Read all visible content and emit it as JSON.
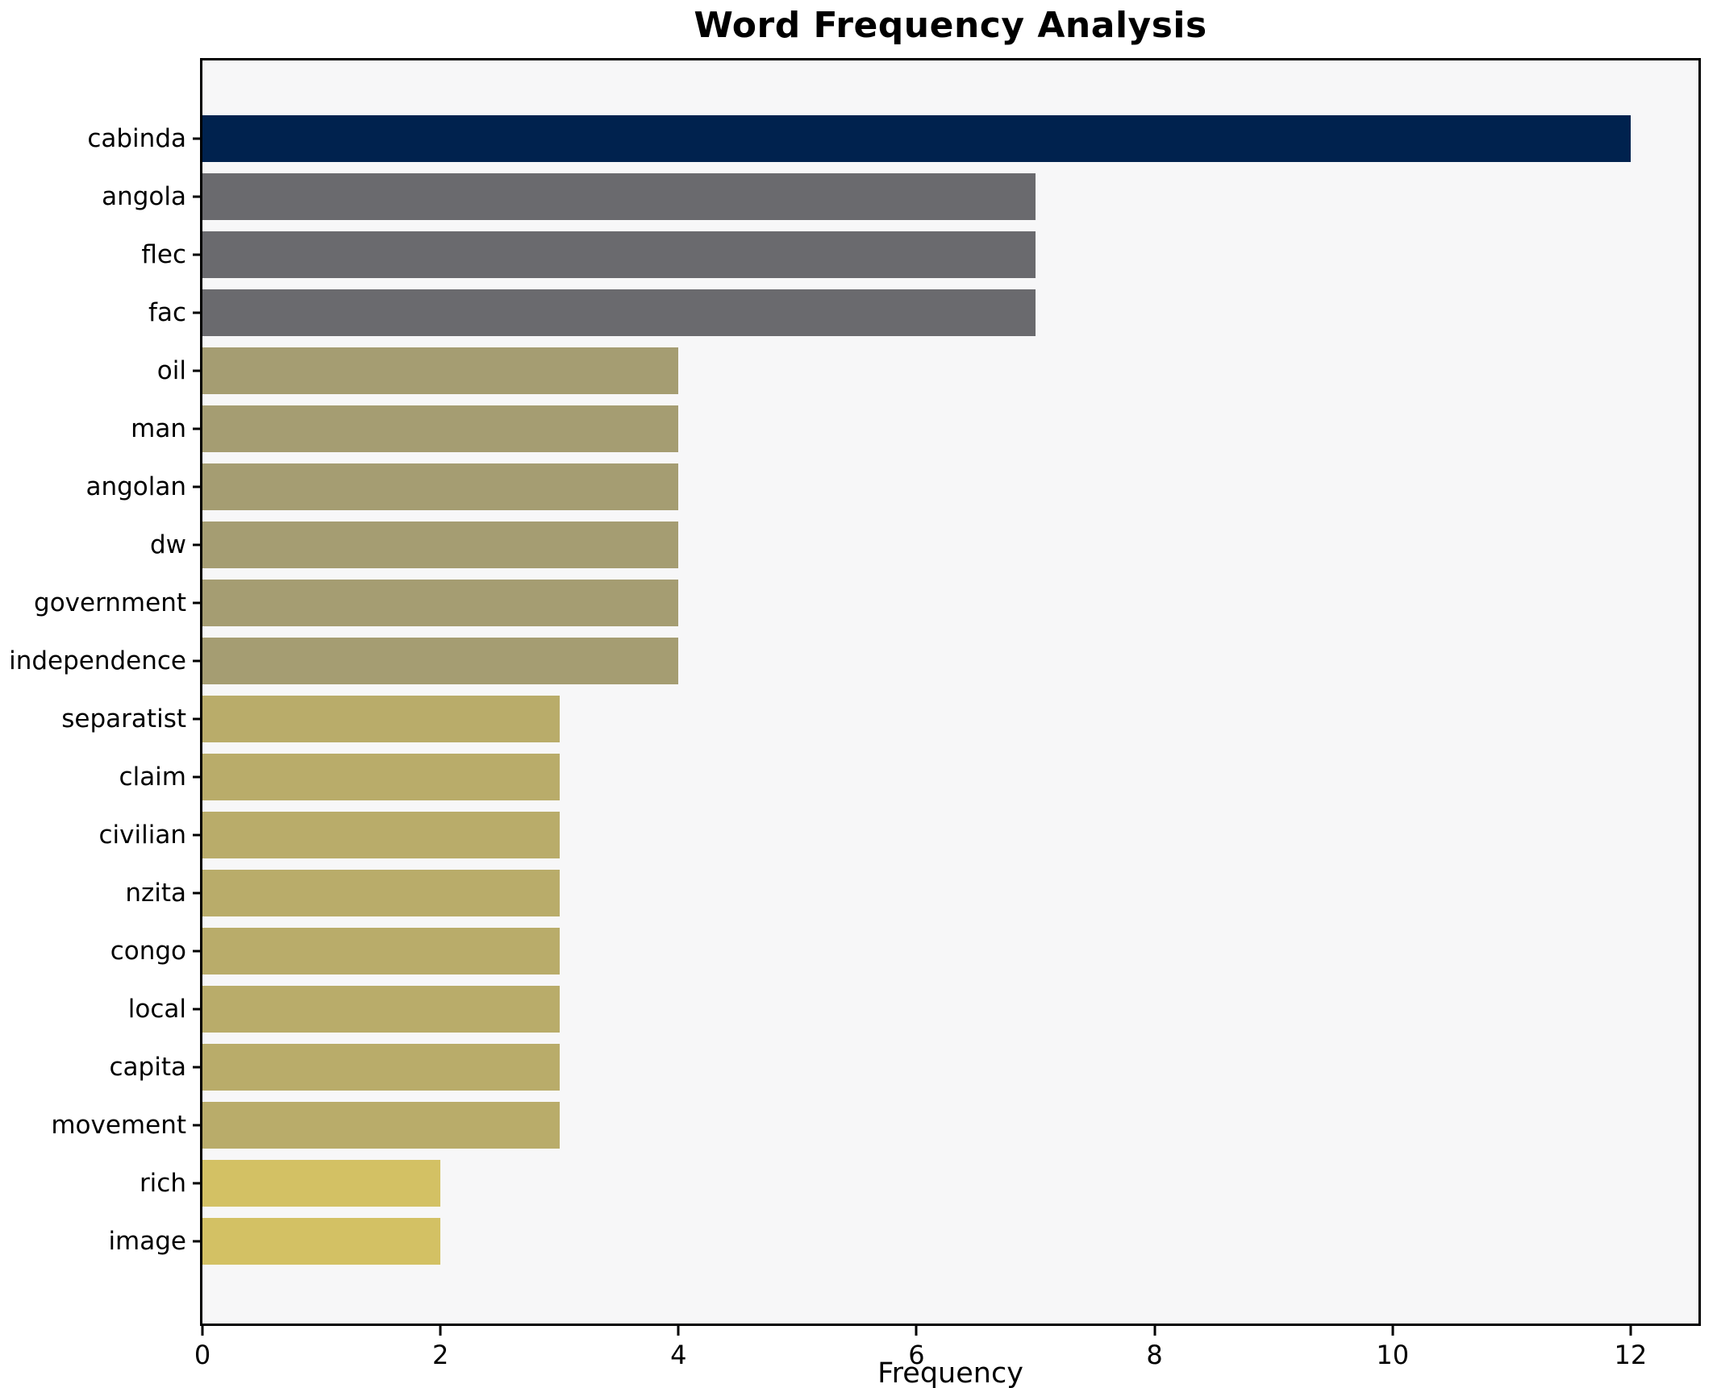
{
  "chart_data": {
    "type": "bar",
    "orientation": "horizontal",
    "title": "Word Frequency Analysis",
    "xlabel": "Frequency",
    "ylabel": "",
    "categories": [
      "cabinda",
      "angola",
      "flec",
      "fac",
      "oil",
      "man",
      "angolan",
      "dw",
      "government",
      "independence",
      "separatist",
      "claim",
      "civilian",
      "nzita",
      "congo",
      "local",
      "capita",
      "movement",
      "rich",
      "image"
    ],
    "values": [
      12,
      7,
      7,
      7,
      4,
      4,
      4,
      4,
      4,
      4,
      3,
      3,
      3,
      3,
      3,
      3,
      3,
      3,
      2,
      2
    ],
    "bar_colors": [
      "#00224e",
      "#6a6a6e",
      "#6a6a6e",
      "#6a6a6e",
      "#a59d72",
      "#a59d72",
      "#a59d72",
      "#a59d72",
      "#a59d72",
      "#a59d72",
      "#b9ac6a",
      "#b9ac6a",
      "#b9ac6a",
      "#b9ac6a",
      "#b9ac6a",
      "#b9ac6a",
      "#b9ac6a",
      "#b9ac6a",
      "#d3c164",
      "#d3c164"
    ],
    "xticks": [
      0,
      2,
      4,
      6,
      8,
      10,
      12
    ],
    "xlim": [
      0,
      12.57
    ],
    "grid": false,
    "legend": false,
    "plot_background": "#f7f7f8",
    "figure_background": "#ffffff",
    "spine_color": "#000000"
  }
}
